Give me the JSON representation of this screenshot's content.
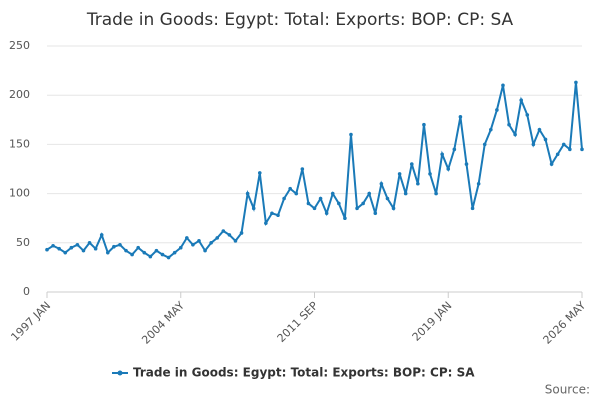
{
  "chart_data": {
    "type": "line",
    "title": "Trade in Goods: Egypt: Total: Exports: BOP: CP: SA",
    "categories": [
      "1997 JAN",
      null,
      null,
      null,
      null,
      null,
      null,
      null,
      null,
      null,
      null,
      null,
      null,
      null,
      null,
      null,
      null,
      null,
      null,
      null,
      null,
      null,
      "2004 MAY",
      null,
      null,
      null,
      null,
      null,
      null,
      null,
      null,
      null,
      null,
      null,
      null,
      null,
      null,
      null,
      null,
      null,
      null,
      null,
      null,
      null,
      "2011 SEP",
      null,
      null,
      null,
      null,
      null,
      null,
      null,
      null,
      null,
      null,
      null,
      null,
      null,
      null,
      null,
      null,
      null,
      null,
      null,
      null,
      null,
      "2019 JAN",
      null,
      null,
      null,
      null,
      null,
      null,
      null,
      null,
      null,
      null,
      null,
      null,
      null,
      null,
      null,
      null,
      null,
      null,
      null,
      null,
      null,
      "2026 MAY"
    ],
    "series": [
      {
        "name": "Trade in Goods: Egypt: Total: Exports: BOP: CP: SA",
        "color": "#1a7ab8",
        "values": [
          43,
          47,
          44,
          40,
          45,
          48,
          42,
          50,
          44,
          58,
          40,
          46,
          48,
          42,
          38,
          45,
          40,
          36,
          42,
          38,
          35,
          40,
          45,
          55,
          48,
          52,
          42,
          50,
          55,
          62,
          58,
          52,
          60,
          100,
          85,
          121,
          70,
          80,
          78,
          95,
          105,
          100,
          125,
          90,
          85,
          95,
          80,
          100,
          90,
          75,
          160,
          85,
          90,
          100,
          80,
          110,
          95,
          85,
          120,
          100,
          130,
          110,
          170,
          120,
          100,
          140,
          125,
          145,
          178,
          130,
          85,
          110,
          150,
          165,
          185,
          210,
          170,
          160,
          195,
          180,
          150,
          165,
          155,
          130,
          140,
          150,
          145,
          213,
          145
        ]
      }
    ],
    "ylim": [
      0,
      250
    ],
    "yticks": [
      0,
      50,
      100,
      150,
      200,
      250
    ],
    "grid": true,
    "legend": "bottom",
    "source": "Source:"
  }
}
